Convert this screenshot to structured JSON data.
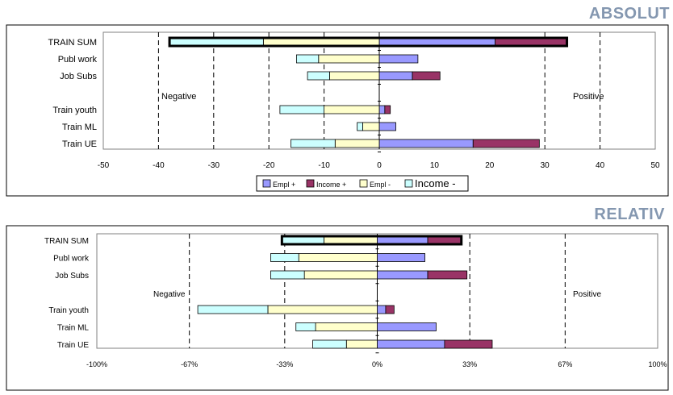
{
  "headings": {
    "absolute": "ABSOLUT",
    "relative": "RELATIV"
  },
  "colors": {
    "empl_plus": "#9999FF",
    "income_plus": "#993366",
    "empl_minus": "#FFFFCC",
    "income_minus": "#CCFFFF",
    "border": "#000000",
    "heading": "#8497B0"
  },
  "chart_data": [
    {
      "type": "bar",
      "orientation": "horizontal",
      "stacked": true,
      "title": "ABSOLUT",
      "categories": [
        "TRAIN SUM",
        "Publ work",
        "Job Subs",
        "",
        "Train youth",
        "Train ML",
        "Train UE"
      ],
      "xlim": [
        -50,
        50
      ],
      "xticks": [
        -50,
        -40,
        -30,
        -20,
        -10,
        0,
        10,
        20,
        30,
        40,
        50
      ],
      "xtick_labels": [
        "-50",
        "-40",
        "-30",
        "-20",
        "-10",
        "0",
        "10",
        "20",
        "30",
        "40",
        "50"
      ],
      "dashed_gridlines": [
        -40,
        -30,
        -20,
        -10,
        30,
        40
      ],
      "annotations": {
        "negative": "Negative",
        "positive": "Positive"
      },
      "series": [
        {
          "name": "Empl +",
          "key": "empl_plus",
          "values": [
            21,
            7,
            6,
            null,
            1,
            3,
            17
          ]
        },
        {
          "name": "Income +",
          "key": "income_plus",
          "values": [
            13,
            0,
            5,
            null,
            1,
            0,
            12
          ]
        },
        {
          "name": "Empl -",
          "key": "empl_minus",
          "values": [
            -21,
            -11,
            -9,
            null,
            -10,
            -3,
            -8
          ]
        },
        {
          "name": "Income -",
          "key": "income_minus",
          "values": [
            -17,
            -4,
            -4,
            null,
            -8,
            -1,
            -8
          ]
        }
      ],
      "highlight_row": "TRAIN SUM",
      "legend": {
        "placement": "bottom-center",
        "items": [
          "Empl +",
          "Income +",
          "Empl -",
          "Income -"
        ]
      }
    },
    {
      "type": "bar",
      "orientation": "horizontal",
      "stacked": true,
      "title": "RELATIV",
      "categories": [
        "TRAIN SUM",
        "Publ work",
        "Job Subs",
        "",
        "Train youth",
        "Train ML",
        "Train UE"
      ],
      "xlim": [
        -100,
        100
      ],
      "xticks": [
        -100,
        -67,
        -33,
        0,
        33,
        67,
        100
      ],
      "xtick_labels": [
        "-100%",
        "-67%",
        "-33%",
        "0%",
        "33%",
        "67%",
        "100%"
      ],
      "dashed_gridlines": [
        -67,
        -33,
        33,
        67
      ],
      "annotations": {
        "negative": "Negative",
        "positive": "Positive"
      },
      "series": [
        {
          "name": "Empl +",
          "key": "empl_plus",
          "values": [
            18,
            17,
            18,
            null,
            3,
            21,
            24
          ]
        },
        {
          "name": "Income +",
          "key": "income_plus",
          "values": [
            12,
            0,
            14,
            null,
            3,
            0,
            17
          ]
        },
        {
          "name": "Empl -",
          "key": "empl_minus",
          "values": [
            -19,
            -28,
            -26,
            null,
            -39,
            -22,
            -11
          ]
        },
        {
          "name": "Income -",
          "key": "income_minus",
          "values": [
            -15,
            -10,
            -12,
            null,
            -25,
            -7,
            -12
          ]
        }
      ],
      "highlight_row": "TRAIN SUM",
      "legend": null
    }
  ]
}
